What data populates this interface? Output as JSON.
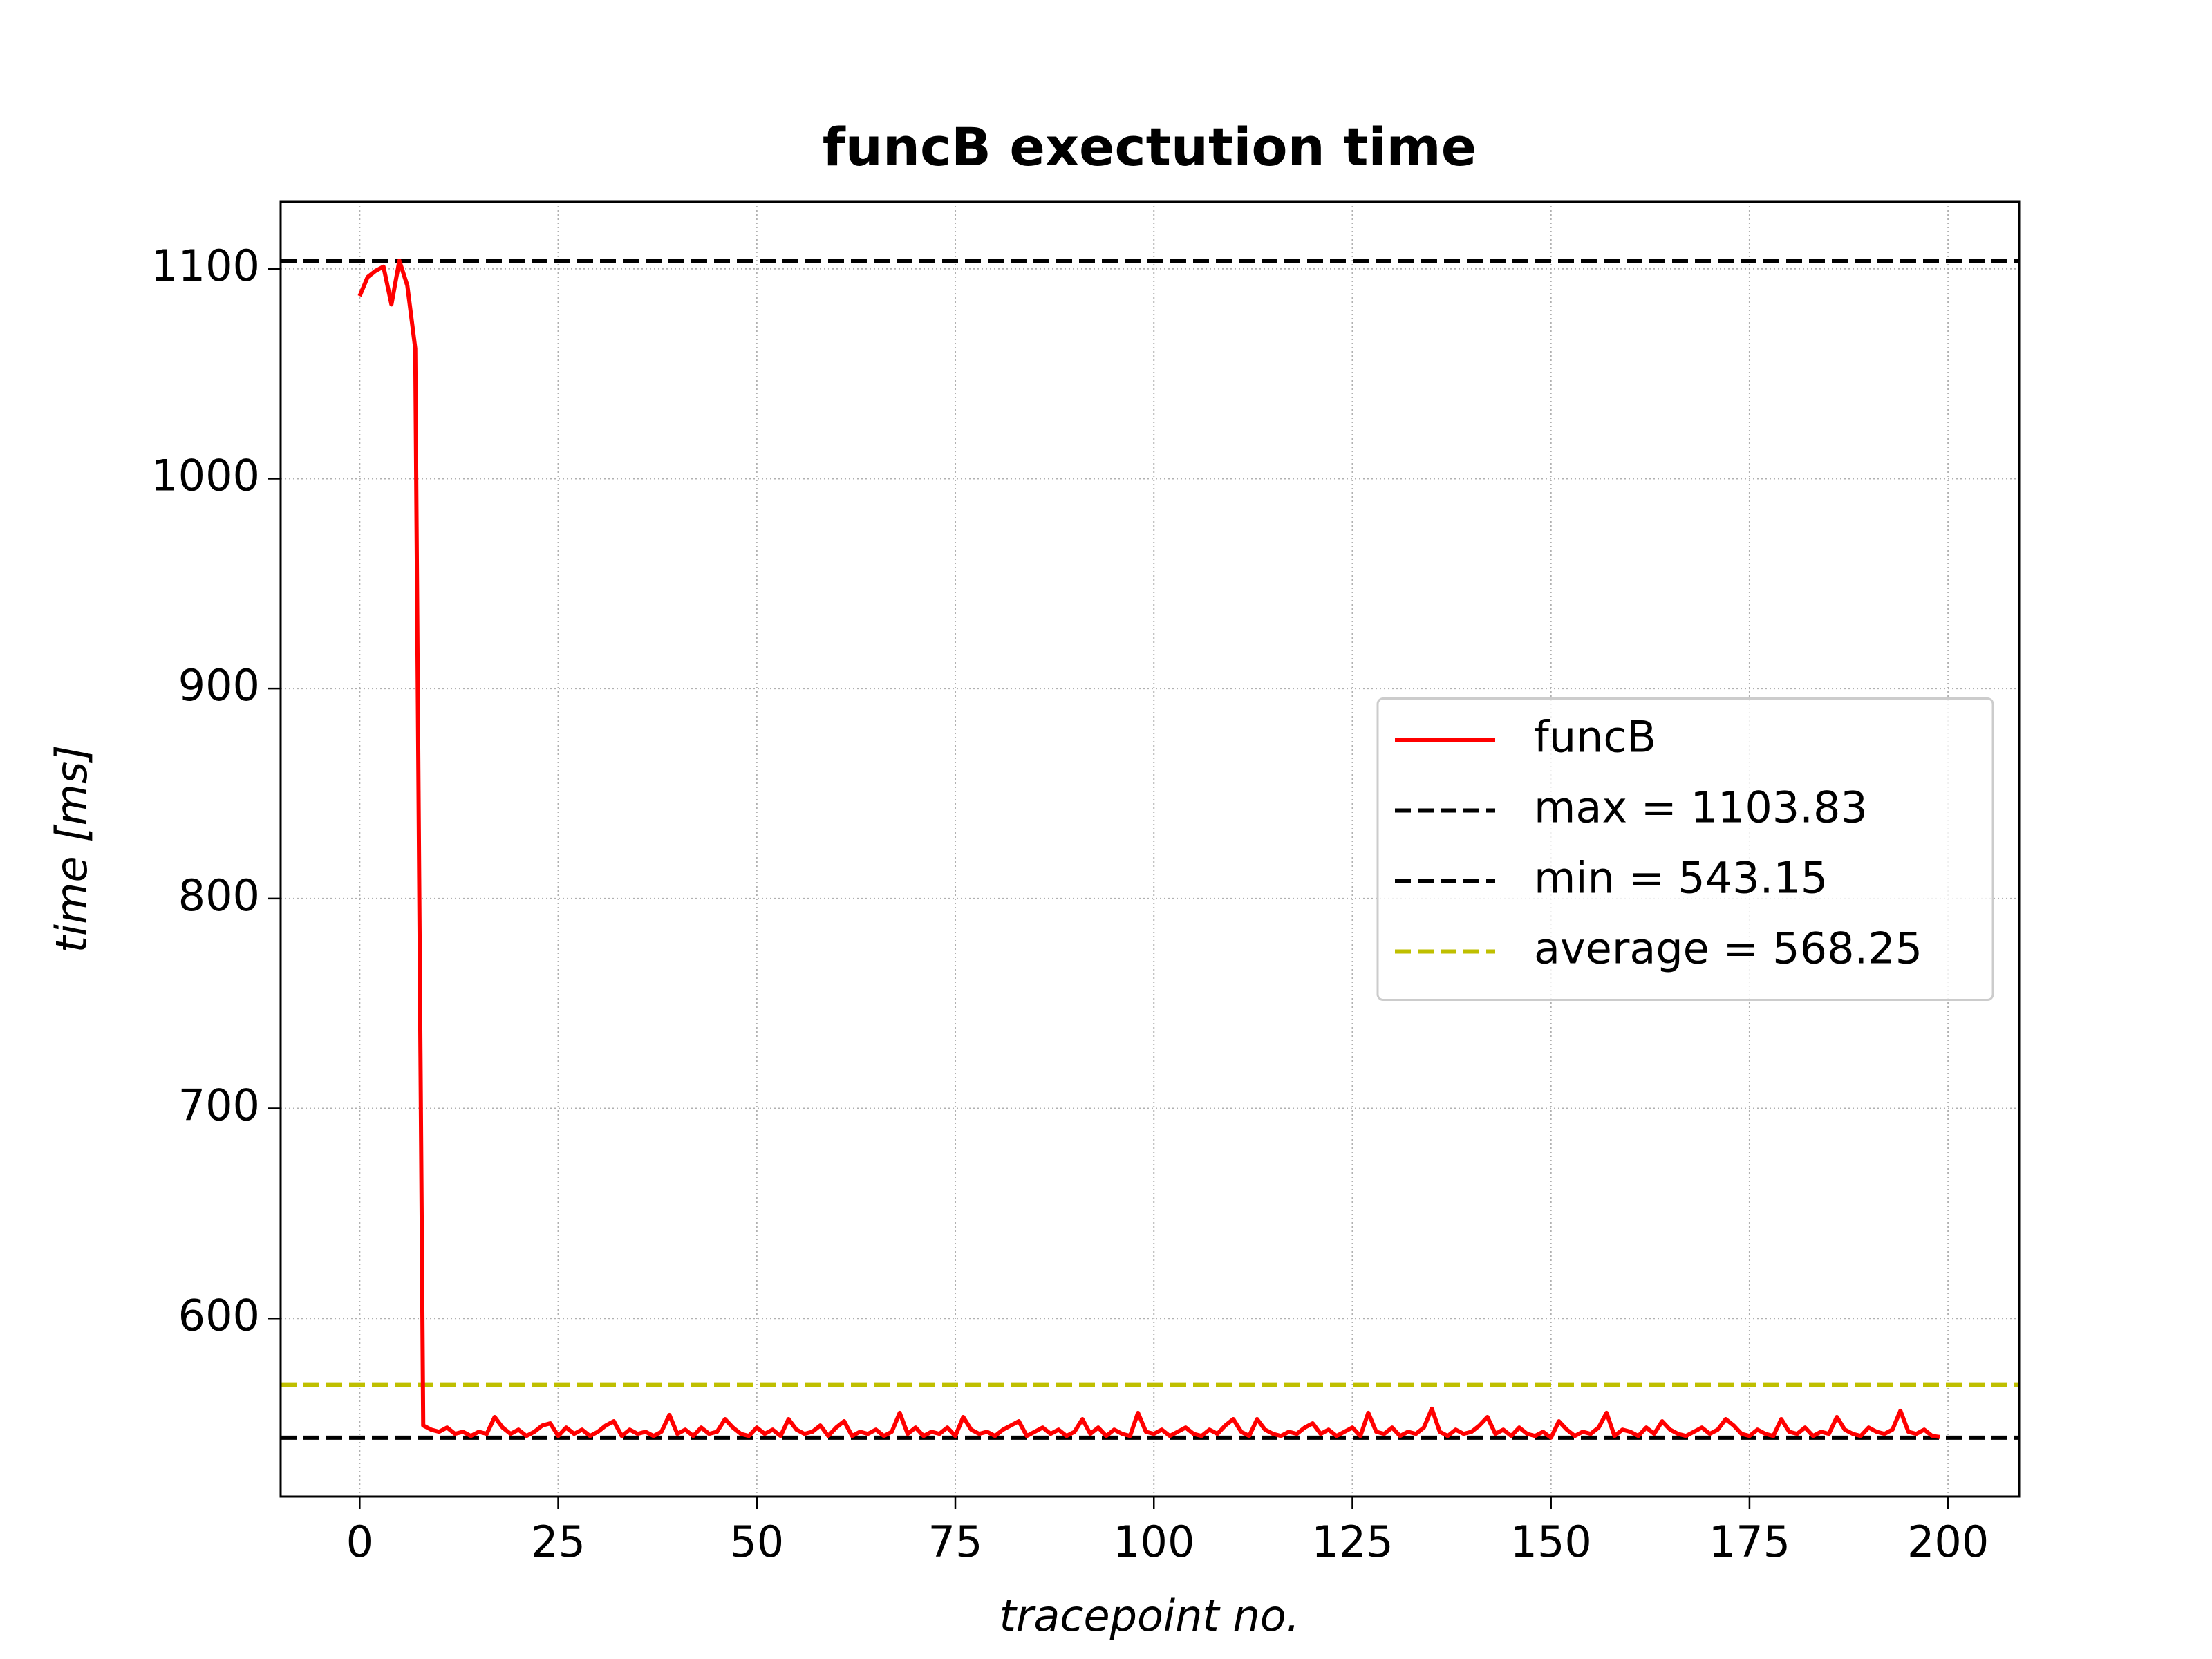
{
  "chart_data": {
    "type": "line",
    "title": "funcB exectution time",
    "xlabel": "tracepoint no.",
    "ylabel": "time [ms]",
    "x": [
      0,
      1,
      2,
      3,
      4,
      5,
      6,
      7,
      8,
      9,
      10,
      11,
      12,
      13,
      14,
      15,
      16,
      17,
      18,
      19,
      20,
      21,
      22,
      23,
      24,
      25,
      26,
      27,
      28,
      29,
      30,
      31,
      32,
      33,
      34,
      35,
      36,
      37,
      38,
      39,
      40,
      41,
      42,
      43,
      44,
      45,
      46,
      47,
      48,
      49,
      50,
      51,
      52,
      53,
      54,
      55,
      56,
      57,
      58,
      59,
      60,
      61,
      62,
      63,
      64,
      65,
      66,
      67,
      68,
      69,
      70,
      71,
      72,
      73,
      74,
      75,
      76,
      77,
      78,
      79,
      80,
      81,
      82,
      83,
      84,
      85,
      86,
      87,
      88,
      89,
      90,
      91,
      92,
      93,
      94,
      95,
      96,
      97,
      98,
      99,
      100,
      101,
      102,
      103,
      104,
      105,
      106,
      107,
      108,
      109,
      110,
      111,
      112,
      113,
      114,
      115,
      116,
      117,
      118,
      119,
      120,
      121,
      122,
      123,
      124,
      125,
      126,
      127,
      128,
      129,
      130,
      131,
      132,
      133,
      134,
      135,
      136,
      137,
      138,
      139,
      140,
      141,
      142,
      143,
      144,
      145,
      146,
      147,
      148,
      149,
      150,
      151,
      152,
      153,
      154,
      155,
      156,
      157,
      158,
      159,
      160,
      161,
      162,
      163,
      164,
      165,
      166,
      167,
      168,
      169,
      170,
      171,
      172,
      173,
      174,
      175,
      176,
      177,
      178,
      179,
      180,
      181,
      182,
      183,
      184,
      185,
      186,
      187,
      188,
      189,
      190,
      191,
      192,
      193,
      194,
      195,
      196,
      197,
      198,
      199
    ],
    "series": [
      {
        "name": "funcB",
        "color": "#ff0000",
        "values": [
          1087,
          1096,
          1099,
          1101,
          1083,
          1103.83,
          1092,
          1062,
          549,
          547,
          546,
          548,
          545,
          546,
          544,
          546,
          545,
          553,
          548,
          545,
          547,
          544,
          546,
          549,
          550,
          544,
          548,
          545,
          547,
          544,
          546,
          549,
          551,
          544,
          547,
          545,
          546,
          544,
          546,
          554,
          545,
          547,
          544,
          548,
          545,
          546,
          552,
          548,
          545,
          544,
          548,
          545,
          547,
          544,
          552,
          547,
          545,
          546,
          549,
          544,
          548,
          551,
          544,
          546,
          545,
          547,
          544,
          546,
          555,
          545,
          548,
          544,
          546,
          545,
          548,
          544,
          553,
          547,
          545,
          546,
          544,
          547,
          549,
          551,
          544,
          546,
          548,
          545,
          547,
          544,
          546,
          552,
          545,
          548,
          544,
          547,
          545,
          544,
          555,
          546,
          545,
          547,
          544,
          546,
          548,
          545,
          544,
          547,
          545,
          549,
          552,
          546,
          544,
          552,
          547,
          545,
          544,
          546,
          545,
          548,
          550,
          545,
          547,
          544,
          546,
          548,
          544,
          555,
          546,
          545,
          548,
          544,
          546,
          545,
          548,
          557,
          546,
          544,
          547,
          545,
          546,
          549,
          553,
          545,
          547,
          544,
          548,
          545,
          544,
          546,
          543.15,
          551,
          547,
          544,
          546,
          545,
          548,
          555,
          544,
          547,
          546,
          544,
          548,
          545,
          551,
          547,
          545,
          544,
          546,
          548,
          545,
          547,
          552,
          549,
          545,
          544,
          547,
          545,
          544,
          552,
          546,
          545,
          548,
          544,
          546,
          545,
          553,
          547,
          545,
          544,
          548,
          546,
          545,
          547,
          556,
          546,
          545,
          547,
          544,
          543.5
        ]
      }
    ],
    "hlines": [
      {
        "name": "max = 1103.83",
        "value": 1103.83,
        "color": "#000000"
      },
      {
        "name": "min = 543.15",
        "value": 543.15,
        "color": "#000000"
      },
      {
        "name": "average = 568.25",
        "value": 568.25,
        "color": "#bfbf00"
      }
    ],
    "xlim": [
      -9.95,
      208.95
    ],
    "ylim": [
      515.12,
      1131.86
    ],
    "xticks": [
      0,
      25,
      50,
      75,
      100,
      125,
      150,
      175,
      200
    ],
    "yticks": [
      600,
      700,
      800,
      900,
      1000,
      1100
    ],
    "grid": true,
    "legend": "center right"
  }
}
